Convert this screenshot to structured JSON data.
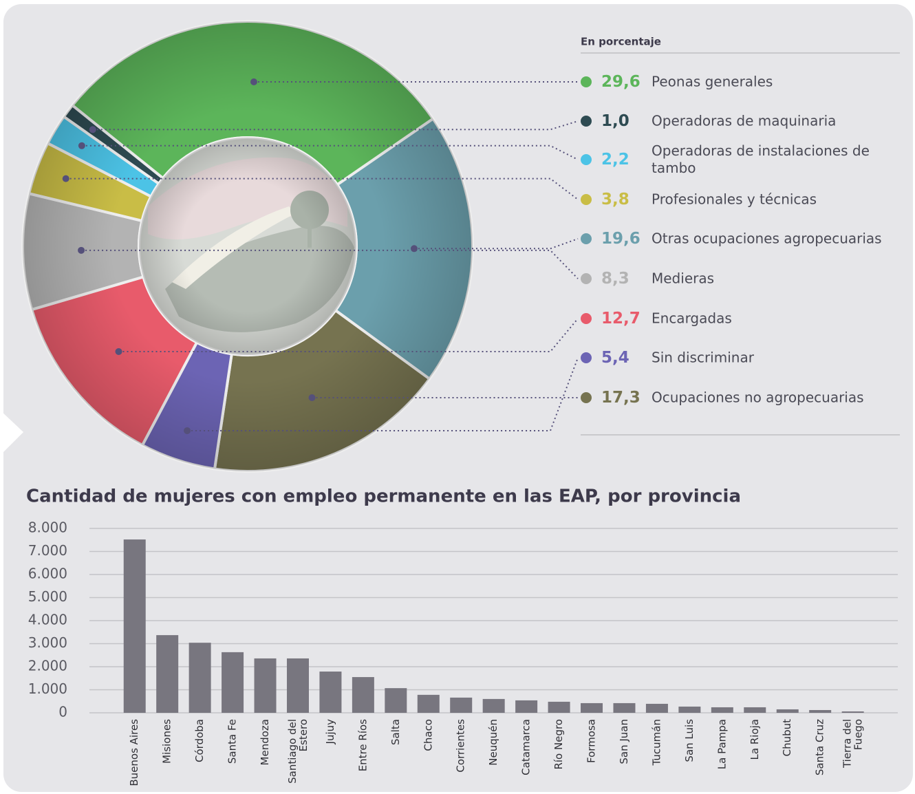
{
  "chart_data": [
    {
      "type": "donut",
      "subtitle": "En porcentaje",
      "categories": [
        "Peonas generales",
        "Operadoras de maquinaria",
        "Operadoras de instalaciones de tambo",
        "Profesionales y técnicas",
        "Otras ocupaciones agropecuarias",
        "Medieras",
        "Encargadas",
        "Sin discriminar",
        "Ocupaciones no agropecuarias"
      ],
      "values": [
        29.6,
        1.0,
        2.2,
        3.8,
        19.6,
        8.3,
        12.7,
        5.4,
        17.3
      ],
      "value_labels": [
        "29,6",
        "1,0",
        "2,2",
        "3,8",
        "19,6",
        "8,3",
        "12,7",
        "5,4",
        "17,3"
      ],
      "colors": [
        "#5cb55a",
        "#2e4b52",
        "#4cc3e6",
        "#c9bd46",
        "#6b9fac",
        "#b3b3b3",
        "#e85b6b",
        "#6c64b4",
        "#767350"
      ]
    },
    {
      "type": "bar",
      "title": "Cantidad de mujeres con empleo permanente en las EAP, por provincia",
      "categories": [
        "Buenos Aires",
        "Misiones",
        "Córdoba",
        "Santa Fe",
        "Mendoza",
        "Santiago del Estero",
        "Jujuy",
        "Entre Ríos",
        "Salta",
        "Chaco",
        "Corrientes",
        "Neuquén",
        "Catamarca",
        "Río Negro",
        "Formosa",
        "San Juan",
        "Tucumán",
        "San Luis",
        "La Pampa",
        "La Rioja",
        "Chubut",
        "Santa Cruz",
        "Tierra del Fuego"
      ],
      "values": [
        7520,
        3370,
        3040,
        2630,
        2360,
        2360,
        1790,
        1550,
        1070,
        780,
        660,
        600,
        540,
        480,
        420,
        420,
        390,
        270,
        240,
        240,
        150,
        120,
        60
      ],
      "color": "#78767f",
      "ylim": [
        0,
        8000
      ],
      "yticks": [
        0,
        {
          "value": 1000,
          "label": "1.000"
        },
        {
          "value": 2000,
          "label": "2.000"
        },
        {
          "value": 3000,
          "label": "3.000"
        },
        {
          "value": 4000,
          "label": "4.000"
        },
        {
          "value": 5000,
          "label": "5.000"
        },
        {
          "value": 6000,
          "label": "6.000"
        },
        {
          "value": 7000,
          "label": "7.000"
        },
        {
          "value": 8000,
          "label": "8.000"
        }
      ],
      "grid": true
    }
  ]
}
